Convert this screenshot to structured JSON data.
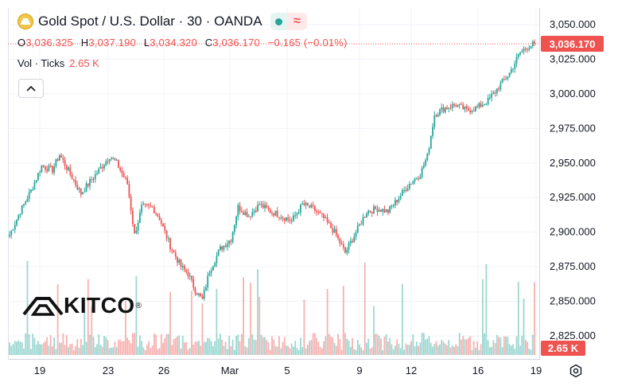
{
  "header": {
    "title": "Gold Spot / U.S. Dollar · 30 · OANDA",
    "ohlc": {
      "o_label": "O",
      "o_value": "3,036.325",
      "h_label": "H",
      "h_value": "3,037.190",
      "l_label": "L",
      "l_value": "3,034.320",
      "c_label": "C",
      "c_value": "3,036.170",
      "change": "−0.165 (−0.01%)"
    },
    "volume_label": "Vol · Ticks",
    "volume_value": "2.65 K"
  },
  "watermark": {
    "text": "KITCO",
    "mark": "®"
  },
  "price_tag": "3,036.170",
  "volume_tag": "2.65 K",
  "colors": {
    "up": "#26a69a",
    "down": "#ef5350",
    "accent": "#ef5350",
    "gold": "#c9a227"
  },
  "icons": [
    "gold-coin-icon",
    "live-dot-icon",
    "wave-icon",
    "chevron-up-icon",
    "settings-icon"
  ],
  "chart_data": {
    "type": "candlestick",
    "title": "Gold Spot / U.S. Dollar · 30 · OANDA",
    "interval": "30",
    "ylim": [
      2810,
      3060
    ],
    "y_ticks": [
      "3,050.000",
      "3,025.000",
      "3,000.000",
      "2,975.000",
      "2,950.000",
      "2,925.000",
      "2,900.000",
      "2,875.000",
      "2,850.000",
      "2,825.000"
    ],
    "y_tick_values": [
      3050,
      3025,
      3000,
      2975,
      2950,
      2925,
      2900,
      2875,
      2850,
      2825
    ],
    "x_ticks": [
      "19",
      "23",
      "26",
      "Mar",
      "5",
      "9",
      "12",
      "16",
      "19"
    ],
    "last_close": 3036.17,
    "grid": true,
    "price_path": [
      [
        0,
        2898
      ],
      [
        3,
        2915
      ],
      [
        6,
        2930
      ],
      [
        9,
        2948
      ],
      [
        12,
        2945
      ],
      [
        14,
        2956
      ],
      [
        17,
        2942
      ],
      [
        20,
        2928
      ],
      [
        23,
        2938
      ],
      [
        26,
        2948
      ],
      [
        28,
        2955
      ],
      [
        30,
        2950
      ],
      [
        33,
        2935
      ],
      [
        35,
        2898
      ],
      [
        37,
        2918
      ],
      [
        40,
        2918
      ],
      [
        42,
        2910
      ],
      [
        45,
        2890
      ],
      [
        48,
        2875
      ],
      [
        50,
        2870
      ],
      [
        52,
        2858
      ],
      [
        54,
        2851
      ],
      [
        56,
        2872
      ],
      [
        59,
        2888
      ],
      [
        62,
        2895
      ],
      [
        64,
        2918
      ],
      [
        67,
        2912
      ],
      [
        70,
        2920
      ],
      [
        73,
        2915
      ],
      [
        76,
        2912
      ],
      [
        79,
        2908
      ],
      [
        82,
        2920
      ],
      [
        85,
        2917
      ],
      [
        88,
        2910
      ],
      [
        91,
        2900
      ],
      [
        94,
        2885
      ],
      [
        97,
        2900
      ],
      [
        100,
        2915
      ],
      [
        103,
        2917
      ],
      [
        106,
        2915
      ],
      [
        109,
        2925
      ],
      [
        112,
        2935
      ],
      [
        115,
        2942
      ],
      [
        117,
        2955
      ],
      [
        119,
        2985
      ],
      [
        122,
        2990
      ],
      [
        125,
        2992
      ],
      [
        128,
        2988
      ],
      [
        131,
        2990
      ],
      [
        134,
        2995
      ],
      [
        137,
        3005
      ],
      [
        140,
        3015
      ],
      [
        143,
        3030
      ],
      [
        145,
        3034
      ],
      [
        147,
        3036.17
      ]
    ],
    "volume": {
      "last_value": 2.65,
      "unit": "K ticks"
    }
  }
}
